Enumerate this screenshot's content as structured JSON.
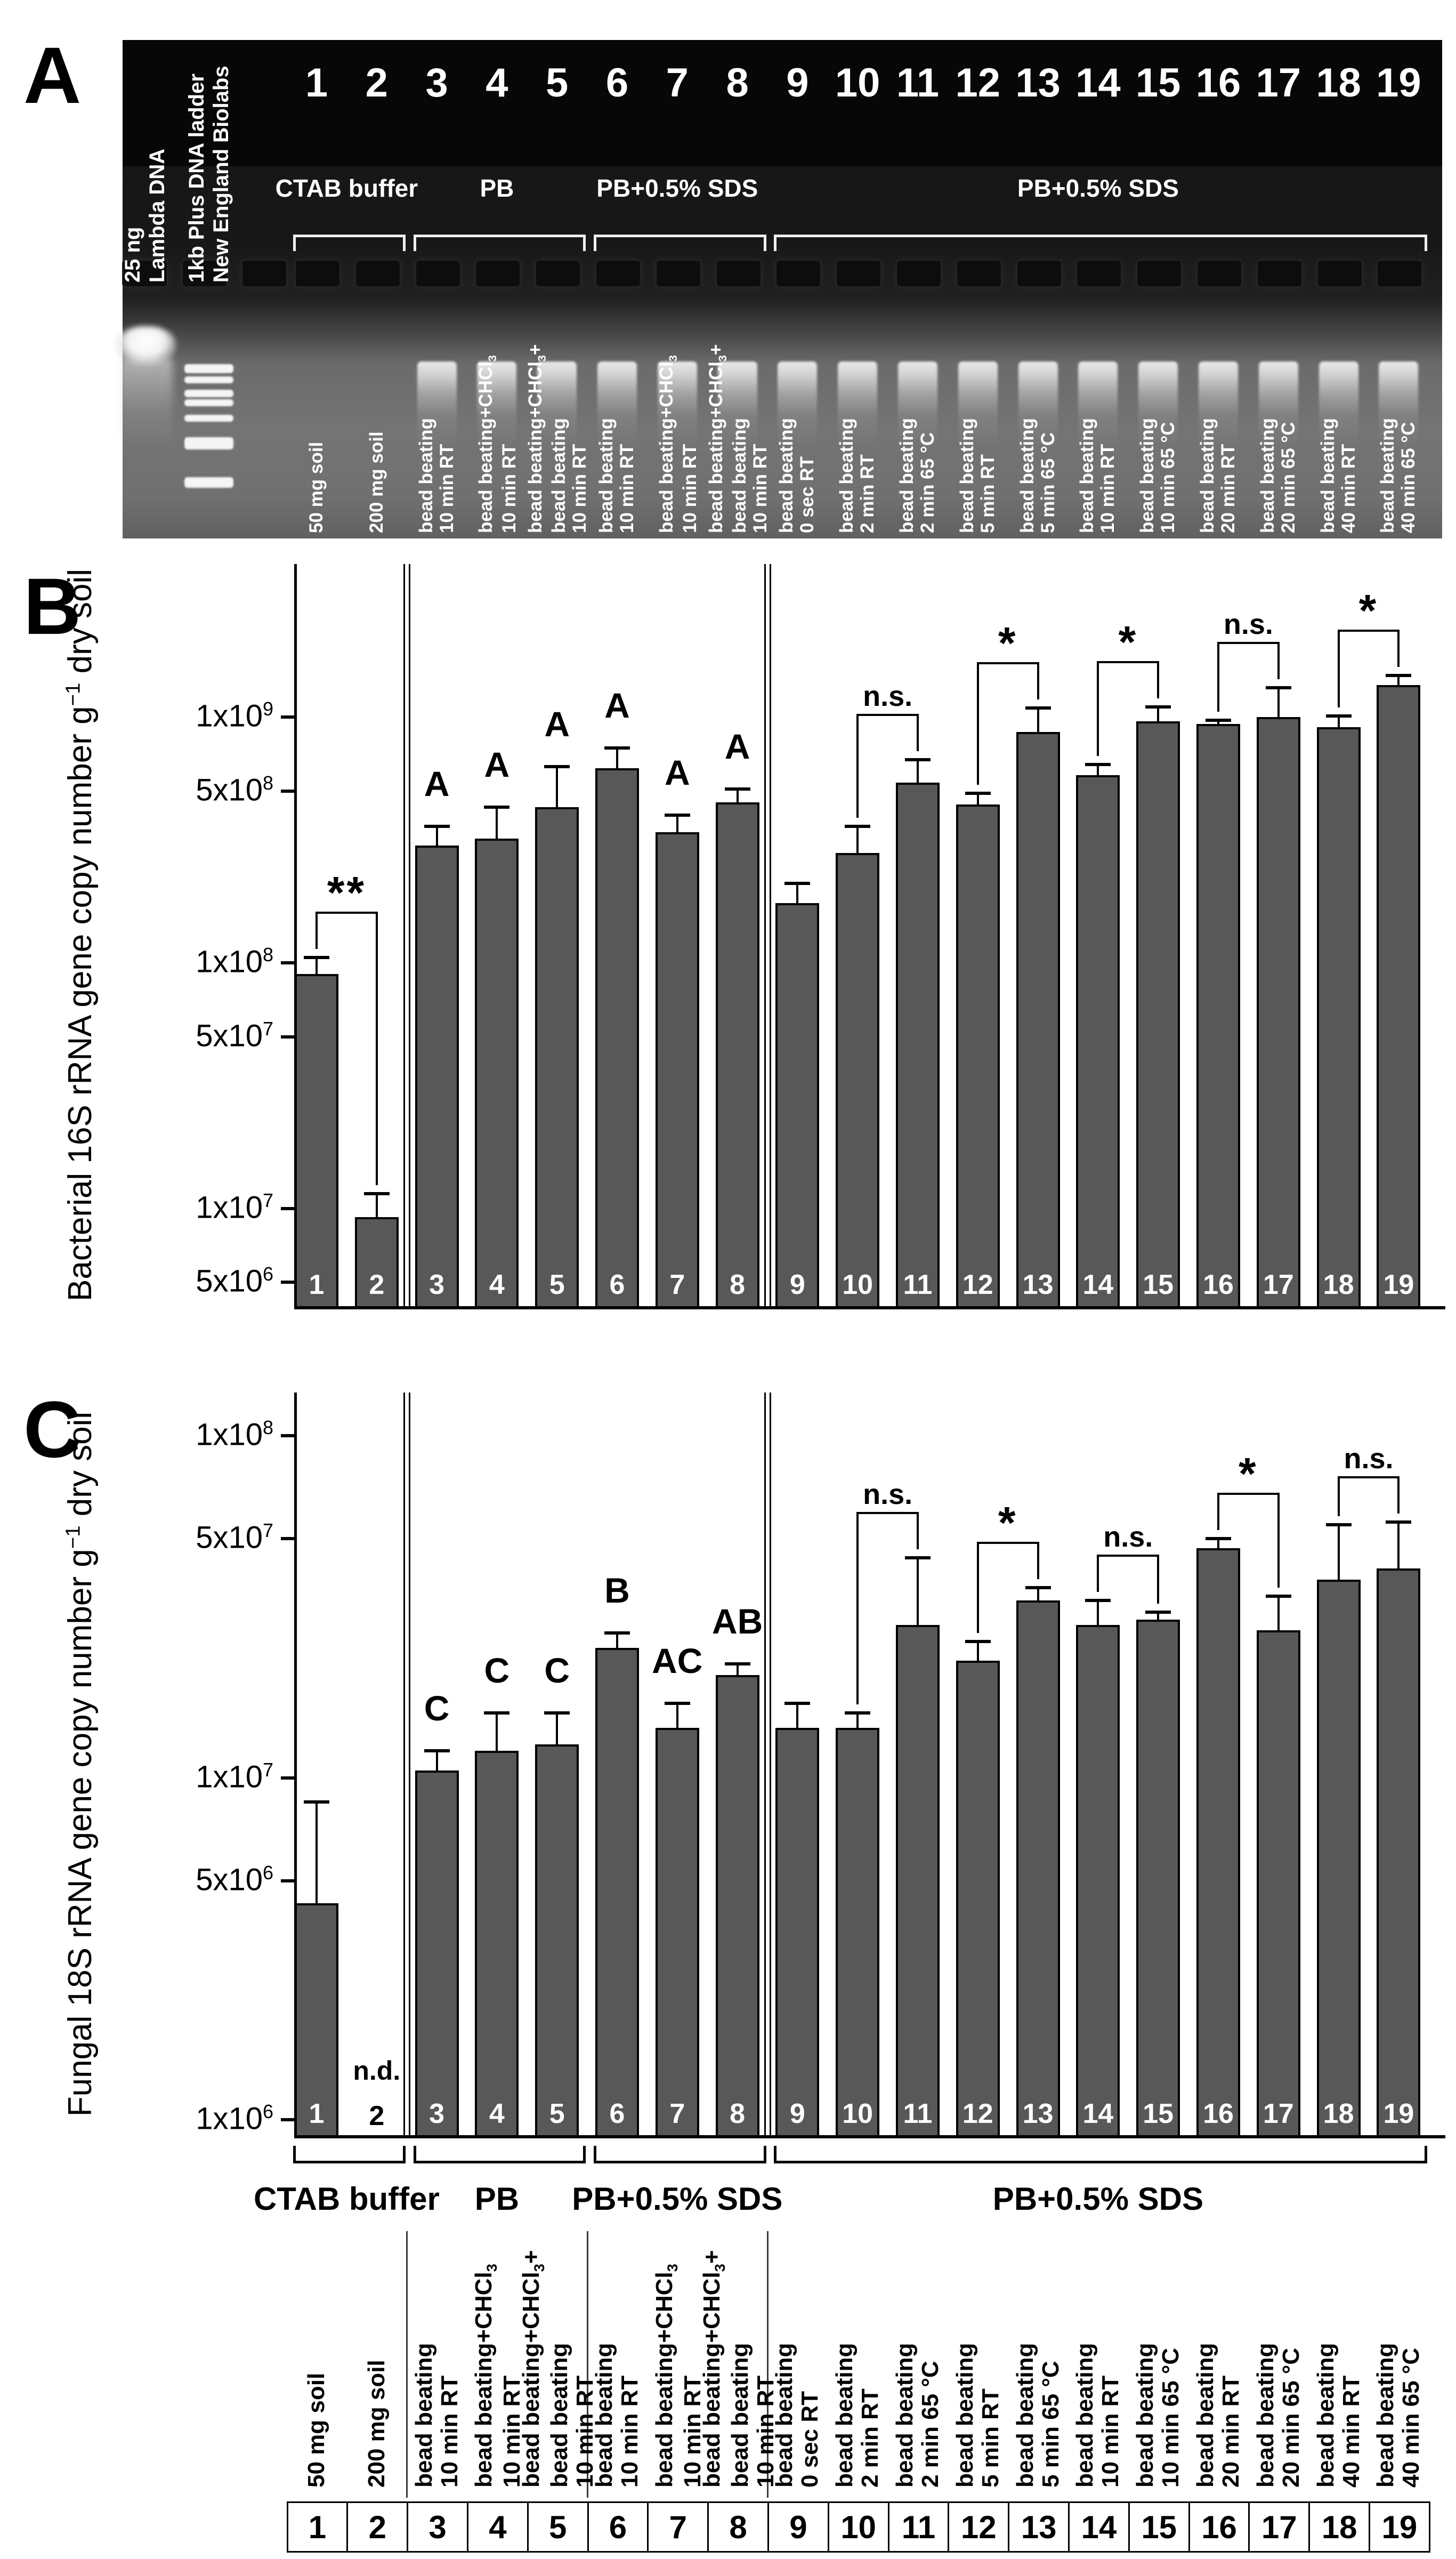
{
  "lane_numbers": [
    "1",
    "2",
    "3",
    "4",
    "5",
    "6",
    "7",
    "8",
    "9",
    "10",
    "11",
    "12",
    "13",
    "14",
    "15",
    "16",
    "17",
    "18",
    "19"
  ],
  "treatments": [
    [
      "50 mg soil"
    ],
    [
      "200 mg soil"
    ],
    [
      "bead beating",
      "10 min RT"
    ],
    [
      "bead beating+CHCl_3_",
      "10 min RT"
    ],
    [
      "bead beating+CHCl_3_+",
      "bead beating",
      "10 min RT"
    ],
    [
      "bead beating",
      "10 min RT"
    ],
    [
      "bead beating+CHCl_3_",
      "10 min RT"
    ],
    [
      "bead beating+CHCl_3_+",
      "bead beating",
      "10 min RT"
    ],
    [
      "bead beating",
      "0 sec RT"
    ],
    [
      "bead beating",
      "2 min RT"
    ],
    [
      "bead beating",
      "2 min 65 °C"
    ],
    [
      "bead beating",
      "5 min RT"
    ],
    [
      "bead beating",
      "5 min 65 °C"
    ],
    [
      "bead beating",
      "10 min RT"
    ],
    [
      "bead beating",
      "10 min 65 °C"
    ],
    [
      "bead beating",
      "20 min RT"
    ],
    [
      "bead beating",
      "20 min 65 °C"
    ],
    [
      "bead beating",
      "40 min RT"
    ],
    [
      "bead beating",
      "40 min 65 °C"
    ]
  ],
  "groups": [
    {
      "label": "CTAB buffer",
      "from": 1,
      "to": 2
    },
    {
      "label": "PB",
      "from": 3,
      "to": 5
    },
    {
      "label": "PB+0.5% SDS",
      "from": 6,
      "to": 8
    },
    {
      "label": "PB+0.5% SDS",
      "from": 9,
      "to": 19
    }
  ],
  "panel_a": {
    "label": "A",
    "marker_labels": [
      [
        "25 ng",
        "Lambda DNA"
      ],
      [
        "1kb Plus DNA ladder",
        "New England Biolabs"
      ]
    ]
  },
  "chart_data": [
    {
      "type": "bar",
      "panel_label": "B",
      "scale": "log",
      "ylabel": "Bacterial 16S rRNA gene copy number g^−1^ dry soil",
      "categories": [
        "1",
        "2",
        "3",
        "4",
        "5",
        "6",
        "7",
        "8",
        "9",
        "10",
        "11",
        "12",
        "13",
        "14",
        "15",
        "16",
        "17",
        "18",
        "19"
      ],
      "values": [
        90000000.0,
        9200000.0,
        300000000.0,
        320000000.0,
        430000000.0,
        620000000.0,
        340000000.0,
        450000000.0,
        175000000.0,
        280000000.0,
        540000000.0,
        440000000.0,
        870000000.0,
        580000000.0,
        960000000.0,
        940000000.0,
        1000000000.0,
        910000000.0,
        1350000000.0
      ],
      "errors_plus": [
        15000000.0,
        2300000.0,
        60000000.0,
        110000000.0,
        200000000.0,
        130000000.0,
        60000000.0,
        60000000.0,
        35000000.0,
        80000000.0,
        130000000.0,
        50000000.0,
        220000000.0,
        60000000.0,
        140000000.0,
        30000000.0,
        320000000.0,
        100000000.0,
        130000000.0
      ],
      "letters": [
        "",
        "",
        "A",
        "A",
        "A",
        "A",
        "A",
        "A",
        "",
        "",
        "",
        "",
        "",
        "",
        "",
        "",
        "",
        "",
        ""
      ],
      "significance": [
        {
          "bars": [
            1,
            2
          ],
          "label": "**"
        },
        {
          "bars": [
            10,
            11
          ],
          "label": "n.s."
        },
        {
          "bars": [
            12,
            13
          ],
          "label": "*"
        },
        {
          "bars": [
            14,
            15
          ],
          "label": "*"
        },
        {
          "bars": [
            16,
            17
          ],
          "label": "n.s."
        },
        {
          "bars": [
            18,
            19
          ],
          "label": "*"
        }
      ],
      "yticks": [
        {
          "label": "1x10^9^",
          "value": 1000000000.0
        },
        {
          "label": "5x10^8^",
          "value": 500000000.0
        },
        {
          "label": "1x10^8^",
          "value": 100000000.0
        },
        {
          "label": "5x10^7^",
          "value": 50000000.0
        },
        {
          "label": "1x10^7^",
          "value": 10000000.0
        },
        {
          "label": "5x10^6^",
          "value": 5000000.0
        }
      ],
      "ylim": [
        4000000.0,
        4200000000.0
      ],
      "not_detected": [],
      "nd_label": "n.d.",
      "grid": false,
      "legend": "none"
    },
    {
      "type": "bar",
      "panel_label": "C",
      "scale": "log",
      "ylabel": "Fungal 18S rRNA gene copy number g^−1^ dry soil",
      "categories": [
        "1",
        "2",
        "3",
        "4",
        "5",
        "6",
        "7",
        "8",
        "9",
        "10",
        "11",
        "12",
        "13",
        "14",
        "15",
        "16",
        "17",
        "18",
        "19"
      ],
      "values": [
        4300000.0,
        null,
        10500000.0,
        12000000.0,
        12500000.0,
        24000000.0,
        14000000.0,
        20000000.0,
        14000000.0,
        14000000.0,
        28000000.0,
        22000000.0,
        33000000.0,
        28000000.0,
        29000000.0,
        47000000.0,
        27000000.0,
        38000000.0,
        41000000.0
      ],
      "errors_plus": [
        4200000.0,
        null,
        1500000.0,
        3500000.0,
        3000000.0,
        2500000.0,
        2500000.0,
        1500000.0,
        2500000.0,
        1500000.0,
        16000000.0,
        3000000.0,
        3000000.0,
        5000000.0,
        1500000.0,
        3000000.0,
        7000000.0,
        17000000.0,
        15000000.0
      ],
      "letters": [
        "",
        "",
        "C",
        "C",
        "C",
        "B",
        "AC",
        "AB",
        "",
        "",
        "",
        "",
        "",
        "",
        "",
        "",
        "",
        "",
        ""
      ],
      "significance": [
        {
          "bars": [
            10,
            11
          ],
          "label": "n.s."
        },
        {
          "bars": [
            12,
            13
          ],
          "label": "*"
        },
        {
          "bars": [
            14,
            15
          ],
          "label": "n.s."
        },
        {
          "bars": [
            16,
            17
          ],
          "label": "*"
        },
        {
          "bars": [
            18,
            19
          ],
          "label": "n.s."
        }
      ],
      "yticks": [
        {
          "label": "1x10^8^",
          "value": 100000000.0
        },
        {
          "label": "5x10^7^",
          "value": 50000000.0
        },
        {
          "label": "1x10^7^",
          "value": 10000000.0
        },
        {
          "label": "5x10^6^",
          "value": 5000000.0
        },
        {
          "label": "1x10^6^",
          "value": 1000000.0
        }
      ],
      "ylim": [
        900000.0,
        134000000.0
      ],
      "not_detected": [
        2
      ],
      "nd_label": "n.d.",
      "grid": false,
      "legend": "none"
    }
  ]
}
